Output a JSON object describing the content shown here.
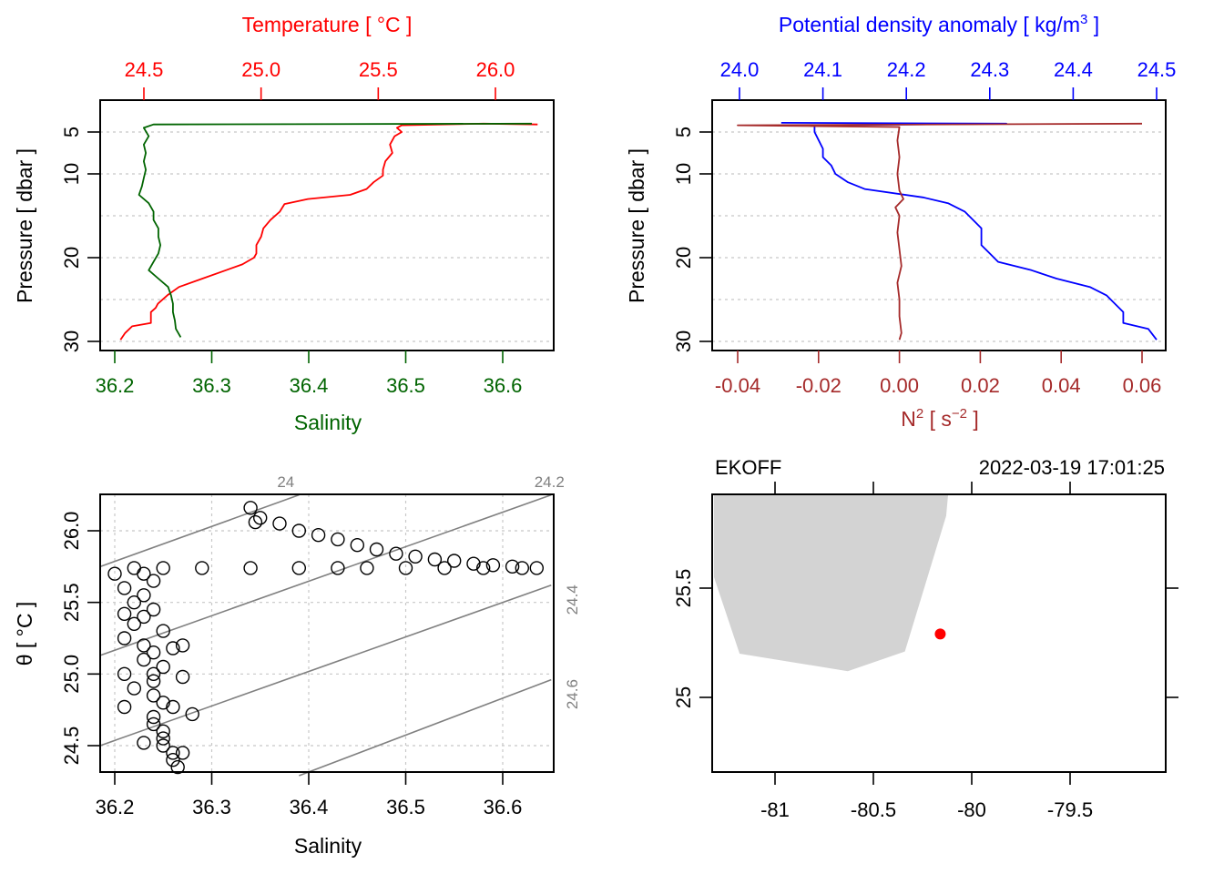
{
  "chart_data": [
    {
      "id": "profile-ts",
      "type": "line",
      "title": "",
      "top_axis": {
        "label": "Temperature [ °C ]",
        "color": "#ff0000",
        "ticks": [
          "24.5",
          "25.0",
          "25.5",
          "26.0"
        ],
        "tick_values": [
          24.5,
          25.0,
          25.5,
          26.0
        ],
        "range": [
          24.39,
          26.2
        ]
      },
      "bottom_axis": {
        "label": "Salinity",
        "color": "#006400",
        "ticks": [
          "36.2",
          "36.3",
          "36.4",
          "36.5",
          "36.6"
        ],
        "tick_values": [
          36.2,
          36.3,
          36.4,
          36.5,
          36.6
        ],
        "range": [
          36.185,
          36.65
        ]
      },
      "left_axis": {
        "label": "Pressure [ dbar ]",
        "ticks": [
          "5",
          "10",
          "20",
          "30"
        ],
        "tick_values": [
          5,
          10,
          20,
          30
        ],
        "grid_values": [
          5,
          10,
          15,
          20,
          25,
          30
        ],
        "range": [
          30.5,
          2.3
        ],
        "reversed": true
      },
      "grid": true,
      "series": [
        {
          "name": "Temperature",
          "color": "#ff0000",
          "axis": "top",
          "points": [
            [
              26.18,
              4.1
            ],
            [
              25.95,
              4.0
            ],
            [
              25.6,
              4.2
            ],
            [
              25.58,
              4.5
            ],
            [
              25.6,
              5.0
            ],
            [
              25.57,
              5.5
            ],
            [
              25.55,
              6.5
            ],
            [
              25.56,
              7.5
            ],
            [
              25.53,
              8.5
            ],
            [
              25.52,
              9.5
            ],
            [
              25.52,
              10.2
            ],
            [
              25.48,
              11.0
            ],
            [
              25.45,
              11.8
            ],
            [
              25.38,
              12.5
            ],
            [
              25.2,
              13.0
            ],
            [
              25.1,
              13.6
            ],
            [
              25.08,
              14.5
            ],
            [
              25.04,
              15.5
            ],
            [
              25.01,
              16.5
            ],
            [
              25.0,
              17.5
            ],
            [
              24.98,
              18.5
            ],
            [
              24.98,
              19.5
            ],
            [
              24.97,
              20.0
            ],
            [
              24.92,
              20.8
            ],
            [
              24.85,
              21.5
            ],
            [
              24.75,
              22.5
            ],
            [
              24.65,
              23.5
            ],
            [
              24.6,
              24.5
            ],
            [
              24.56,
              25.5
            ],
            [
              24.55,
              26.0
            ],
            [
              24.53,
              26.5
            ],
            [
              24.53,
              27.8
            ],
            [
              24.45,
              28.2
            ],
            [
              24.42,
              29.0
            ],
            [
              24.4,
              29.8
            ]
          ]
        },
        {
          "name": "Salinity",
          "color": "#006400",
          "axis": "bottom",
          "points": [
            [
              36.63,
              4.0
            ],
            [
              36.24,
              4.1
            ],
            [
              36.23,
              4.5
            ],
            [
              36.235,
              5.5
            ],
            [
              36.23,
              6.5
            ],
            [
              36.232,
              7.5
            ],
            [
              36.23,
              8.5
            ],
            [
              36.232,
              9.5
            ],
            [
              36.23,
              10.5
            ],
            [
              36.228,
              11.5
            ],
            [
              36.225,
              12.5
            ],
            [
              36.235,
              13.5
            ],
            [
              36.24,
              14.5
            ],
            [
              36.24,
              15.5
            ],
            [
              36.245,
              16.5
            ],
            [
              36.245,
              17.5
            ],
            [
              36.247,
              18.5
            ],
            [
              36.245,
              19.5
            ],
            [
              36.24,
              20.5
            ],
            [
              36.235,
              21.5
            ],
            [
              36.245,
              22.5
            ],
            [
              36.255,
              23.5
            ],
            [
              36.258,
              24.5
            ],
            [
              36.26,
              25.5
            ],
            [
              36.26,
              26.5
            ],
            [
              36.262,
              27.5
            ],
            [
              36.263,
              28.5
            ],
            [
              36.268,
              29.5
            ]
          ]
        }
      ]
    },
    {
      "id": "profile-density-n2",
      "type": "line",
      "title": "",
      "top_axis": {
        "label": "Potential density anomaly [ kg/m³ ]",
        "color": "#0000ff",
        "ticks": [
          "24.0",
          "24.1",
          "24.2",
          "24.3",
          "24.4",
          "24.5"
        ],
        "tick_values": [
          24.0,
          24.1,
          24.2,
          24.3,
          24.4,
          24.5
        ],
        "range": [
          23.968,
          24.512
        ]
      },
      "bottom_axis": {
        "label": "N² [ s⁻² ]",
        "color": "#a52a2a",
        "ticks": [
          "-0.04",
          "-0.02",
          "0.00",
          "0.02",
          "0.04",
          "0.06"
        ],
        "tick_values": [
          -0.04,
          -0.02,
          0.0,
          0.02,
          0.04,
          0.06
        ],
        "range": [
          -0.0447,
          0.0673
        ]
      },
      "left_axis": {
        "label": "Pressure [ dbar ]",
        "ticks": [
          "5",
          "10",
          "20",
          "30"
        ],
        "tick_values": [
          5,
          10,
          20,
          30
        ],
        "grid_values": [
          5,
          10,
          15,
          20,
          25,
          30
        ],
        "range": [
          30.5,
          2.3
        ],
        "reversed": true
      },
      "grid": true,
      "series": [
        {
          "name": "Potential density anomaly",
          "color": "#0000ff",
          "axis": "top",
          "points": [
            [
              24.05,
              3.9
            ],
            [
              24.32,
              4.0
            ],
            [
              24.09,
              4.2
            ],
            [
              24.09,
              5.0
            ],
            [
              24.095,
              6.0
            ],
            [
              24.1,
              7.0
            ],
            [
              24.1,
              8.0
            ],
            [
              24.11,
              9.0
            ],
            [
              24.115,
              10.0
            ],
            [
              24.13,
              11.0
            ],
            [
              24.15,
              11.8
            ],
            [
              24.22,
              12.8
            ],
            [
              24.25,
              13.5
            ],
            [
              24.27,
              14.5
            ],
            [
              24.28,
              15.5
            ],
            [
              24.29,
              16.5
            ],
            [
              24.29,
              17.5
            ],
            [
              24.29,
              18.5
            ],
            [
              24.3,
              19.5
            ],
            [
              24.31,
              20.5
            ],
            [
              24.35,
              21.5
            ],
            [
              24.38,
              22.5
            ],
            [
              24.42,
              23.5
            ],
            [
              24.44,
              24.5
            ],
            [
              24.45,
              25.5
            ],
            [
              24.46,
              26.5
            ],
            [
              24.46,
              27.8
            ],
            [
              24.49,
              28.5
            ],
            [
              24.5,
              29.8
            ]
          ]
        },
        {
          "name": "N2",
          "color": "#a52a2a",
          "axis": "bottom",
          "points": [
            [
              0.06,
              4.0
            ],
            [
              -0.04,
              4.2
            ],
            [
              0.0,
              4.4
            ],
            [
              -0.0005,
              6.0
            ],
            [
              0.0,
              8.0
            ],
            [
              -0.0005,
              10.0
            ],
            [
              0.0,
              12.0
            ],
            [
              0.001,
              13.0
            ],
            [
              -0.001,
              14.0
            ],
            [
              0.0,
              15.0
            ],
            [
              -0.0005,
              17.0
            ],
            [
              0.0,
              19.0
            ],
            [
              0.0005,
              21.0
            ],
            [
              -0.0005,
              23.0
            ],
            [
              0.0,
              25.0
            ],
            [
              0.0,
              27.0
            ],
            [
              0.0005,
              29.0
            ],
            [
              0.0,
              29.8
            ]
          ]
        }
      ]
    },
    {
      "id": "ts-diagram",
      "type": "scatter",
      "title": "",
      "xlabel": "Salinity",
      "ylabel": "θ [ °C ]",
      "x_ticks": [
        "36.2",
        "36.3",
        "36.4",
        "36.5",
        "36.6"
      ],
      "x_tick_values": [
        36.2,
        36.3,
        36.4,
        36.5,
        36.6
      ],
      "y_ticks": [
        "24.5",
        "25.0",
        "25.5",
        "26.0"
      ],
      "y_tick_values": [
        24.5,
        25.0,
        25.5,
        26.0
      ],
      "xlim": [
        36.185,
        36.65
      ],
      "ylim": [
        24.29,
        26.25
      ],
      "grid": true,
      "density_contours": [
        {
          "label": "24",
          "points": [
            [
              36.185,
              25.75
            ],
            [
              36.39,
              26.25
            ]
          ]
        },
        {
          "label": "24.2",
          "points": [
            [
              36.185,
              25.13
            ],
            [
              36.65,
              26.25
            ]
          ]
        },
        {
          "label": "24.4",
          "points": [
            [
              36.185,
              24.5
            ],
            [
              36.65,
              25.62
            ]
          ]
        },
        {
          "label": "24.6",
          "points": [
            [
              36.39,
              24.29
            ],
            [
              36.65,
              24.96
            ]
          ]
        }
      ],
      "points": [
        [
          36.635,
          25.74
        ],
        [
          36.61,
          25.75
        ],
        [
          36.59,
          25.76
        ],
        [
          36.57,
          25.77
        ],
        [
          36.55,
          25.79
        ],
        [
          36.53,
          25.8
        ],
        [
          36.51,
          25.82
        ],
        [
          36.49,
          25.84
        ],
        [
          36.47,
          25.87
        ],
        [
          36.45,
          25.9
        ],
        [
          36.43,
          25.94
        ],
        [
          36.41,
          25.97
        ],
        [
          36.39,
          26.0
        ],
        [
          36.37,
          26.05
        ],
        [
          36.35,
          26.09
        ],
        [
          36.34,
          26.16
        ],
        [
          36.345,
          26.06
        ],
        [
          36.62,
          25.74
        ],
        [
          36.58,
          25.74
        ],
        [
          36.54,
          25.74
        ],
        [
          36.5,
          25.74
        ],
        [
          36.46,
          25.74
        ],
        [
          36.43,
          25.74
        ],
        [
          36.39,
          25.74
        ],
        [
          36.34,
          25.74
        ],
        [
          36.29,
          25.74
        ],
        [
          36.25,
          25.74
        ],
        [
          36.22,
          25.74
        ],
        [
          36.2,
          25.7
        ],
        [
          36.21,
          25.6
        ],
        [
          36.22,
          25.5
        ],
        [
          36.21,
          25.42
        ],
        [
          36.22,
          25.35
        ],
        [
          36.21,
          25.25
        ],
        [
          36.23,
          25.2
        ],
        [
          36.26,
          25.18
        ],
        [
          36.27,
          25.2
        ],
        [
          36.23,
          25.1
        ],
        [
          36.21,
          25.0
        ],
        [
          36.24,
          25.0
        ],
        [
          36.27,
          24.98
        ],
        [
          36.22,
          24.9
        ],
        [
          36.24,
          24.85
        ],
        [
          36.21,
          24.77
        ],
        [
          36.26,
          24.77
        ],
        [
          36.28,
          24.72
        ],
        [
          36.24,
          24.65
        ],
        [
          36.25,
          24.55
        ],
        [
          36.23,
          24.52
        ],
        [
          36.25,
          24.5
        ],
        [
          36.27,
          24.45
        ],
        [
          36.26,
          24.4
        ],
        [
          36.265,
          24.35
        ],
        [
          36.23,
          25.7
        ],
        [
          36.24,
          25.65
        ],
        [
          36.23,
          25.55
        ],
        [
          36.24,
          25.45
        ],
        [
          36.23,
          25.4
        ],
        [
          36.25,
          25.3
        ],
        [
          36.24,
          25.15
        ],
        [
          36.25,
          25.05
        ],
        [
          36.24,
          24.95
        ],
        [
          36.25,
          24.8
        ],
        [
          36.24,
          24.7
        ],
        [
          36.25,
          24.6
        ],
        [
          36.26,
          24.45
        ]
      ]
    },
    {
      "id": "station-map",
      "type": "scatter",
      "title_left": "EKOFF",
      "title_right": "2022-03-19 17:01:25",
      "x_ticks": [
        "-81",
        "-80.5",
        "-80",
        "-79.5"
      ],
      "x_tick_values": [
        -81,
        -80.5,
        -80,
        -79.5
      ],
      "y_ticks": [
        "25",
        "25.5"
      ],
      "y_tick_values": [
        25,
        25.5
      ],
      "xlim": [
        -81.31,
        -79.02
      ],
      "ylim": [
        24.66,
        25.93
      ],
      "land_color": "#d3d3d3",
      "land_polygon": [
        [
          -81.31,
          25.93
        ],
        [
          -80.12,
          25.93
        ],
        [
          -80.13,
          25.83
        ],
        [
          -80.34,
          25.21
        ],
        [
          -80.63,
          25.12
        ],
        [
          -81.18,
          25.2
        ],
        [
          -81.31,
          25.55
        ]
      ],
      "stations": [
        {
          "lon": -80.16,
          "lat": 25.29,
          "color": "#ff0000"
        }
      ]
    }
  ]
}
